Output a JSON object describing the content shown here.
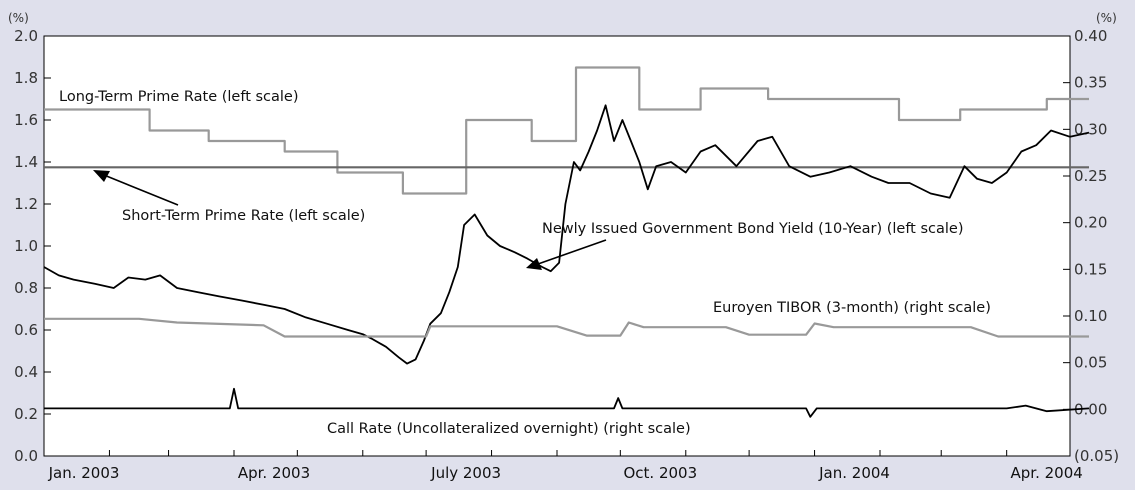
{
  "chart_data": {
    "type": "line",
    "left_axis": {
      "unit": "(%)",
      "ylim": [
        0.0,
        2.0
      ],
      "ticks": [
        "0.0",
        "0.2",
        "0.4",
        "0.6",
        "0.8",
        "1.0",
        "1.2",
        "1.4",
        "1.6",
        "1.8",
        "2.0"
      ]
    },
    "right_axis": {
      "unit": "(%)",
      "ylim": [
        -0.05,
        0.4
      ],
      "ticks": [
        "(0.05)",
        "0.00",
        "0.05",
        "0.10",
        "0.15",
        "0.20",
        "0.25",
        "0.30",
        "0.35",
        "0.40"
      ]
    },
    "x_tick_labels": [
      "Jan. 2003",
      "Apr. 2003",
      "July 2003",
      "Oct. 2003",
      "Jan. 2004",
      "Apr. 2004"
    ],
    "x_range": [
      "2003-01",
      "2004-05"
    ],
    "grid": false,
    "colors": {
      "black_series": "#000000",
      "gray_series": "#999999",
      "background": "#dfe0ec"
    },
    "annotations": [
      "Long-Term Prime Rate (left scale)",
      "Short-Term Prime Rate (left scale)",
      "Newly Issued Government Bond Yield (10-Year) (left scale)",
      "Euroyen TIBOR  (3-month) (right scale)",
      "Call Rate (Uncollateralized overnight) (right scale)"
    ],
    "series": [
      {
        "name": "Long-Term Prime Rate (left scale)",
        "axis": "left",
        "style": "step",
        "color": "#999999",
        "points": [
          [
            "2003-01-01",
            1.65
          ],
          [
            "2003-02-20",
            1.55
          ],
          [
            "2003-03-20",
            1.5
          ],
          [
            "2003-04-25",
            1.45
          ],
          [
            "2003-05-20",
            1.35
          ],
          [
            "2003-06-20",
            1.25
          ],
          [
            "2003-07-20",
            1.6
          ],
          [
            "2003-08-20",
            1.5
          ],
          [
            "2003-09-10",
            1.85
          ],
          [
            "2003-10-10",
            1.65
          ],
          [
            "2003-11-08",
            1.75
          ],
          [
            "2003-12-10",
            1.7
          ],
          [
            "2004-02-10",
            1.6
          ],
          [
            "2004-03-10",
            1.65
          ],
          [
            "2004-04-20",
            1.7
          ],
          [
            "2004-05-10",
            1.7
          ]
        ]
      },
      {
        "name": "Short-Term Prime Rate (left scale)",
        "axis": "left",
        "style": "line",
        "color": "#666666",
        "points": [
          [
            "2003-01-01",
            1.375
          ],
          [
            "2004-05-10",
            1.375
          ]
        ]
      },
      {
        "name": "Newly Issued Government Bond Yield (10-Year) (left scale)",
        "axis": "left",
        "style": "line",
        "color": "#000000",
        "points": [
          [
            "2003-01-01",
            0.9
          ],
          [
            "2003-01-08",
            0.86
          ],
          [
            "2003-01-15",
            0.84
          ],
          [
            "2003-01-25",
            0.82
          ],
          [
            "2003-02-03",
            0.8
          ],
          [
            "2003-02-10",
            0.85
          ],
          [
            "2003-02-18",
            0.84
          ],
          [
            "2003-02-25",
            0.86
          ],
          [
            "2003-03-05",
            0.8
          ],
          [
            "2003-03-15",
            0.78
          ],
          [
            "2003-03-25",
            0.76
          ],
          [
            "2003-04-05",
            0.74
          ],
          [
            "2003-04-15",
            0.72
          ],
          [
            "2003-04-25",
            0.7
          ],
          [
            "2003-05-05",
            0.66
          ],
          [
            "2003-05-15",
            0.63
          ],
          [
            "2003-05-25",
            0.6
          ],
          [
            "2003-06-01",
            0.58
          ],
          [
            "2003-06-05",
            0.56
          ],
          [
            "2003-06-12",
            0.52
          ],
          [
            "2003-06-18",
            0.47
          ],
          [
            "2003-06-22",
            0.44
          ],
          [
            "2003-06-26",
            0.46
          ],
          [
            "2003-06-30",
            0.55
          ],
          [
            "2003-07-03",
            0.63
          ],
          [
            "2003-07-08",
            0.68
          ],
          [
            "2003-07-12",
            0.78
          ],
          [
            "2003-07-16",
            0.9
          ],
          [
            "2003-07-19",
            1.1
          ],
          [
            "2003-07-24",
            1.15
          ],
          [
            "2003-07-30",
            1.05
          ],
          [
            "2003-08-05",
            1.0
          ],
          [
            "2003-08-12",
            0.97
          ],
          [
            "2003-08-18",
            0.94
          ],
          [
            "2003-08-25",
            0.9
          ],
          [
            "2003-08-29",
            0.88
          ],
          [
            "2003-09-02",
            0.92
          ],
          [
            "2003-09-05",
            1.2
          ],
          [
            "2003-09-09",
            1.4
          ],
          [
            "2003-09-12",
            1.36
          ],
          [
            "2003-09-16",
            1.45
          ],
          [
            "2003-09-20",
            1.55
          ],
          [
            "2003-09-24",
            1.67
          ],
          [
            "2003-09-28",
            1.5
          ],
          [
            "2003-10-02",
            1.6
          ],
          [
            "2003-10-06",
            1.5
          ],
          [
            "2003-10-10",
            1.4
          ],
          [
            "2003-10-14",
            1.27
          ],
          [
            "2003-10-18",
            1.38
          ],
          [
            "2003-10-25",
            1.4
          ],
          [
            "2003-11-01",
            1.35
          ],
          [
            "2003-11-08",
            1.45
          ],
          [
            "2003-11-15",
            1.48
          ],
          [
            "2003-11-25",
            1.38
          ],
          [
            "2003-12-05",
            1.5
          ],
          [
            "2003-12-12",
            1.52
          ],
          [
            "2003-12-20",
            1.38
          ],
          [
            "2003-12-30",
            1.33
          ],
          [
            "2004-01-08",
            1.35
          ],
          [
            "2004-01-18",
            1.38
          ],
          [
            "2004-01-28",
            1.33
          ],
          [
            "2004-02-05",
            1.3
          ],
          [
            "2004-02-15",
            1.3
          ],
          [
            "2004-02-25",
            1.25
          ],
          [
            "2004-03-05",
            1.23
          ],
          [
            "2004-03-12",
            1.38
          ],
          [
            "2004-03-18",
            1.32
          ],
          [
            "2004-03-25",
            1.3
          ],
          [
            "2004-04-01",
            1.35
          ],
          [
            "2004-04-08",
            1.45
          ],
          [
            "2004-04-15",
            1.48
          ],
          [
            "2004-04-22",
            1.55
          ],
          [
            "2004-05-01",
            1.52
          ],
          [
            "2004-05-10",
            1.54
          ]
        ]
      },
      {
        "name": "Euroyen TIBOR  (3-month) (right scale)",
        "axis": "right",
        "style": "line",
        "color": "#999999",
        "points": [
          [
            "2003-01-01",
            0.097
          ],
          [
            "2003-02-15",
            0.097
          ],
          [
            "2003-03-05",
            0.093
          ],
          [
            "2003-04-15",
            0.09
          ],
          [
            "2003-04-25",
            0.078
          ],
          [
            "2003-07-01",
            0.078
          ],
          [
            "2003-07-03",
            0.089
          ],
          [
            "2003-09-01",
            0.089
          ],
          [
            "2003-09-15",
            0.079
          ],
          [
            "2003-10-01",
            0.079
          ],
          [
            "2003-10-05",
            0.093
          ],
          [
            "2003-10-12",
            0.088
          ],
          [
            "2003-11-20",
            0.088
          ],
          [
            "2003-12-01",
            0.08
          ],
          [
            "2003-12-28",
            0.08
          ],
          [
            "2004-01-01",
            0.092
          ],
          [
            "2004-01-10",
            0.088
          ],
          [
            "2004-03-15",
            0.088
          ],
          [
            "2004-03-28",
            0.078
          ],
          [
            "2004-05-10",
            0.078
          ]
        ]
      },
      {
        "name": "Call Rate (Uncollateralized overnight) (right scale)",
        "axis": "right",
        "style": "line",
        "color": "#000000",
        "points": [
          [
            "2003-01-01",
            0.001
          ],
          [
            "2003-03-30",
            0.001
          ],
          [
            "2003-04-01",
            0.022
          ],
          [
            "2003-04-03",
            0.001
          ],
          [
            "2003-06-15",
            0.001
          ],
          [
            "2003-09-28",
            0.001
          ],
          [
            "2003-09-30",
            0.012
          ],
          [
            "2003-10-02",
            0.001
          ],
          [
            "2003-12-28",
            0.001
          ],
          [
            "2003-12-30",
            -0.008
          ],
          [
            "2004-01-02",
            0.001
          ],
          [
            "2004-04-01",
            0.001
          ],
          [
            "2004-04-10",
            0.004
          ],
          [
            "2004-04-20",
            -0.002
          ],
          [
            "2004-05-10",
            0.001
          ]
        ]
      }
    ]
  }
}
